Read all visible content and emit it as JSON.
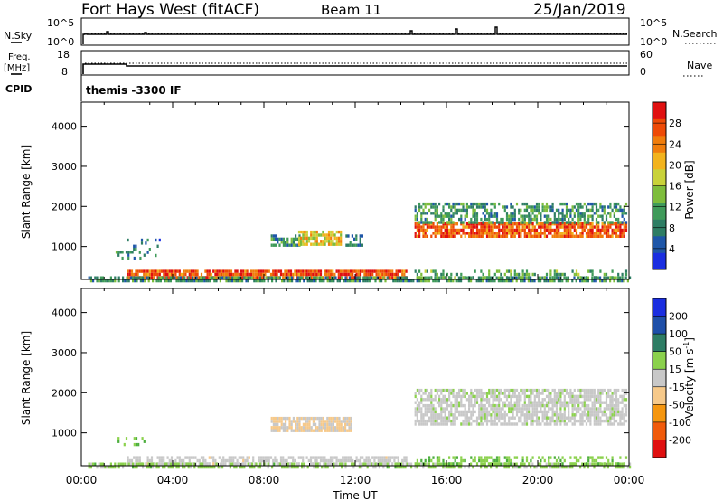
{
  "header": {
    "station": "Fort Hays West (fitACF)",
    "beam": "Beam 11",
    "date": "25/Jan/2019"
  },
  "top_panels": {
    "nsky_label": "N.Sky",
    "nsky_ticks": [
      "10^5",
      "10^0"
    ],
    "nsearch_label": "N.Search",
    "nsearch_ticks": [
      "10^5",
      "10^0"
    ],
    "freq_label_line1": "Freq.",
    "freq_label_line2": "[MHz]",
    "freq_ticks": [
      "18",
      "8"
    ],
    "nave_label": "Nave",
    "nave_ticks": [
      "60",
      "0"
    ],
    "cpid_label": "CPID",
    "cpid_text": "themis -3300 IF"
  },
  "colors": {
    "power_scale": [
      "#1a2ee0",
      "#1e56a8",
      "#2e7d64",
      "#3f9a5a",
      "#7ebd3c",
      "#c9d23a",
      "#f2b31d",
      "#f07d0c",
      "#ee4a06",
      "#e01010"
    ],
    "velocity_scale": [
      "#e01010",
      "#f05a0a",
      "#f5960f",
      "#f6c98a",
      "#c8c8c8",
      "#c8c8c8",
      "#8bd14d",
      "#4cae3d",
      "#2e7d64",
      "#1e4fa8",
      "#1a2ee0"
    ]
  },
  "chart_data": [
    {
      "type": "heatmap",
      "name": "power",
      "ylabel": "Slant Range [km]",
      "yticks": [
        1000,
        2000,
        3000,
        4000
      ],
      "ylim": [
        180,
        4600
      ],
      "xlim_hours": [
        0,
        24
      ],
      "colorbar_label": "Power [dB]",
      "colorbar_ticks": [
        4,
        8,
        12,
        16,
        20,
        24,
        28
      ],
      "colorbar_range": [
        0,
        32
      ],
      "regions": [
        {
          "t0": 2.0,
          "t1": 14.2,
          "r0": 220,
          "r1": 420,
          "v": 27,
          "density": 0.85
        },
        {
          "t0": 0.3,
          "t1": 24.0,
          "r0": 180,
          "r1": 260,
          "v": 10,
          "density": 0.7
        },
        {
          "t0": 14.6,
          "t1": 23.9,
          "r0": 200,
          "r1": 420,
          "v": 12,
          "density": 0.35
        },
        {
          "t0": 8.3,
          "t1": 9.6,
          "r0": 1050,
          "r1": 1300,
          "v": 9,
          "density": 0.6
        },
        {
          "t0": 9.5,
          "t1": 11.4,
          "r0": 1050,
          "r1": 1400,
          "v": 18,
          "density": 0.8
        },
        {
          "t0": 11.4,
          "t1": 12.3,
          "r0": 1050,
          "r1": 1300,
          "v": 8,
          "density": 0.5
        },
        {
          "t0": 14.6,
          "t1": 23.9,
          "r0": 1250,
          "r1": 1600,
          "v": 26,
          "density": 0.85
        },
        {
          "t0": 14.6,
          "t1": 23.9,
          "r0": 1600,
          "r1": 2100,
          "v": 10,
          "density": 0.55
        },
        {
          "t0": 1.5,
          "t1": 2.8,
          "r0": 700,
          "r1": 900,
          "v": 9,
          "density": 0.35
        },
        {
          "t0": 2.0,
          "t1": 3.5,
          "r0": 800,
          "r1": 1200,
          "v": 7,
          "density": 0.12
        }
      ]
    },
    {
      "type": "heatmap",
      "name": "velocity",
      "ylabel": "Slant Range [km]",
      "yticks": [
        1000,
        2000,
        3000,
        4000
      ],
      "ylim": [
        180,
        4600
      ],
      "xlim_hours": [
        0,
        24
      ],
      "colorbar_label": "Velocity [m s",
      "colorbar_exp": "-1",
      "colorbar_ticks": [
        "200",
        "100",
        "50",
        "15",
        "-15",
        "-50",
        "-100",
        "-200"
      ],
      "colorbar_range": [
        -250,
        250
      ],
      "regions": [
        {
          "t0": 2.0,
          "t1": 14.2,
          "r0": 220,
          "r1": 420,
          "v": -40,
          "density": 0.65
        },
        {
          "t0": 0.3,
          "t1": 24.0,
          "r0": 180,
          "r1": 260,
          "v": 40,
          "density": 0.6
        },
        {
          "t0": 14.6,
          "t1": 23.9,
          "r0": 200,
          "r1": 420,
          "v": 60,
          "density": 0.35
        },
        {
          "t0": 8.3,
          "t1": 11.8,
          "r0": 1050,
          "r1": 1400,
          "v": -70,
          "density": 0.85
        },
        {
          "t0": 14.6,
          "t1": 23.9,
          "r0": 1250,
          "r1": 2100,
          "v": 0,
          "density": 0.75
        },
        {
          "t0": 1.5,
          "t1": 2.8,
          "r0": 700,
          "r1": 900,
          "v": 60,
          "density": 0.3
        }
      ]
    }
  ],
  "x_axis": {
    "label": "Time UT",
    "ticks": [
      "00:00",
      "04:00",
      "08:00",
      "12:00",
      "16:00",
      "20:00",
      "00:00"
    ]
  }
}
